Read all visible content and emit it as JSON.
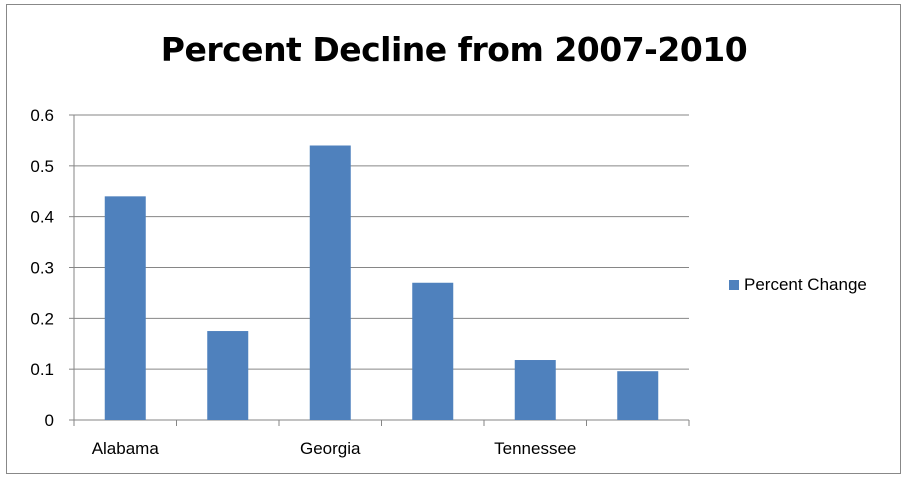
{
  "chart_data": {
    "type": "bar",
    "title": "Percent Decline from 2007-2010",
    "categories": [
      "Alabama",
      "",
      "Georgia",
      "",
      "Tennessee",
      ""
    ],
    "series": [
      {
        "name": "Percent Change",
        "values": [
          0.44,
          0.175,
          0.54,
          0.27,
          0.118,
          0.096
        ],
        "color": "#4F81BD"
      }
    ],
    "ylim": [
      0,
      0.6
    ],
    "yticks": [
      "0",
      "0.1",
      "0.2",
      "0.3",
      "0.4",
      "0.5",
      "0.6"
    ],
    "grid": true,
    "legend_position": "right"
  }
}
